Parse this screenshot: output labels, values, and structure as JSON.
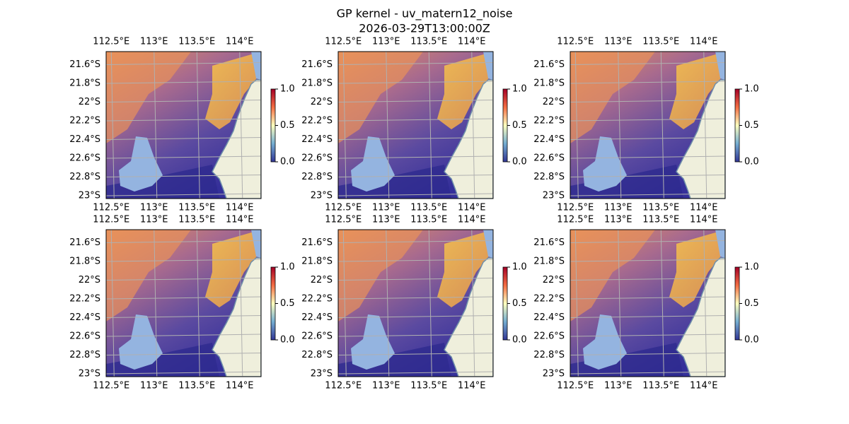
{
  "figure": {
    "title": "GP kernel - uv_matern12_noise",
    "subtitle": "2026-03-29T13:00:00Z"
  },
  "chart_data": [
    {
      "type": "map",
      "xlim": [
        112.44,
        114.25
      ],
      "ylim": [
        -23.03,
        -21.46
      ],
      "xticks": [
        {
          "value": 112.5,
          "label": "112.5°E"
        },
        {
          "value": 113,
          "label": "113°E"
        },
        {
          "value": 113.5,
          "label": "113.5°E"
        },
        {
          "value": 114,
          "label": "114°E"
        }
      ],
      "yticks": [
        {
          "value": -21.6,
          "label": "21.6°S"
        },
        {
          "value": -21.8,
          "label": "21.8°S"
        },
        {
          "value": -22,
          "label": "22°S"
        },
        {
          "value": -22.2,
          "label": "22.2°S"
        },
        {
          "value": -22.4,
          "label": "22.4°S"
        },
        {
          "value": -22.6,
          "label": "22.6°S"
        },
        {
          "value": -22.8,
          "label": "22.8°S"
        },
        {
          "value": -23,
          "label": "23°S"
        }
      ],
      "colorbar": {
        "lim": [
          0,
          1
        ],
        "ticks": [
          {
            "value": 0,
            "label": "0.0"
          },
          0.5,
          {
            "value": 1,
            "label": "1.0"
          }
        ],
        "colors": [
          "#313695",
          "#74add1",
          "#ffffbf",
          "#f46d43",
          "#a50026"
        ]
      }
    },
    {
      "type": "map",
      "xlim": [
        112.44,
        114.25
      ],
      "ylim": [
        -23.03,
        -21.46
      ],
      "xticks": [
        {
          "value": 112.5,
          "label": "112.5°E"
        },
        {
          "value": 113,
          "label": "113°E"
        },
        {
          "value": 113.5,
          "label": "113.5°E"
        },
        {
          "value": 114,
          "label": "114°E"
        }
      ],
      "yticks": [
        {
          "value": -21.6,
          "label": "21.6°S"
        },
        {
          "value": -21.8,
          "label": "21.8°S"
        },
        {
          "value": -22,
          "label": "22°S"
        },
        {
          "value": -22.2,
          "label": "22.2°S"
        },
        {
          "value": -22.4,
          "label": "22.4°S"
        },
        {
          "value": -22.6,
          "label": "22.6°S"
        },
        {
          "value": -22.8,
          "label": "22.8°S"
        },
        {
          "value": -23,
          "label": "23°S"
        }
      ],
      "colorbar": {
        "lim": [
          0,
          1
        ],
        "ticks": [
          {
            "value": 0,
            "label": "0.0"
          },
          0.5,
          {
            "value": 1,
            "label": "1.0"
          }
        ],
        "colors": [
          "#313695",
          "#74add1",
          "#ffffbf",
          "#f46d43",
          "#a50026"
        ]
      }
    },
    {
      "type": "map",
      "xlim": [
        112.44,
        114.25
      ],
      "ylim": [
        -23.03,
        -21.46
      ],
      "xticks": [
        {
          "value": 112.5,
          "label": "112.5°E"
        },
        {
          "value": 113,
          "label": "113°E"
        },
        {
          "value": 113.5,
          "label": "113.5°E"
        },
        {
          "value": 114,
          "label": "114°E"
        }
      ],
      "yticks": [
        {
          "value": -21.6,
          "label": "21.6°S"
        },
        {
          "value": -21.8,
          "label": "21.8°S"
        },
        {
          "value": -22,
          "label": "22°S"
        },
        {
          "value": -22.2,
          "label": "22.2°S"
        },
        {
          "value": -22.4,
          "label": "22.4°S"
        },
        {
          "value": -22.6,
          "label": "22.6°S"
        },
        {
          "value": -22.8,
          "label": "22.8°S"
        },
        {
          "value": -23,
          "label": "23°S"
        }
      ],
      "colorbar": {
        "lim": [
          0,
          1
        ],
        "ticks": [
          {
            "value": 0,
            "label": "0.0"
          },
          0.5,
          {
            "value": 1,
            "label": "1.0"
          }
        ],
        "colors": [
          "#313695",
          "#74add1",
          "#ffffbf",
          "#f46d43",
          "#a50026"
        ]
      }
    },
    {
      "type": "map",
      "xlim": [
        112.44,
        114.25
      ],
      "ylim": [
        -23.03,
        -21.46
      ],
      "xticks": [
        {
          "value": 112.5,
          "label": "112.5°E"
        },
        {
          "value": 113,
          "label": "113°E"
        },
        {
          "value": 113.5,
          "label": "113.5°E"
        },
        {
          "value": 114,
          "label": "114°E"
        }
      ],
      "yticks": [
        {
          "value": -21.6,
          "label": "21.6°S"
        },
        {
          "value": -21.8,
          "label": "21.8°S"
        },
        {
          "value": -22,
          "label": "22°S"
        },
        {
          "value": -22.2,
          "label": "22.2°S"
        },
        {
          "value": -22.4,
          "label": "22.4°S"
        },
        {
          "value": -22.6,
          "label": "22.6°S"
        },
        {
          "value": -22.8,
          "label": "22.8°S"
        },
        {
          "value": -23,
          "label": "23°S"
        }
      ],
      "colorbar": {
        "lim": [
          0,
          1
        ],
        "ticks": [
          {
            "value": 0,
            "label": "0.0"
          },
          0.5,
          {
            "value": 1,
            "label": "1.0"
          }
        ],
        "colors": [
          "#313695",
          "#74add1",
          "#ffffbf",
          "#f46d43",
          "#a50026"
        ]
      }
    },
    {
      "type": "map",
      "xlim": [
        112.44,
        114.25
      ],
      "ylim": [
        -23.03,
        -21.46
      ],
      "xticks": [
        {
          "value": 112.5,
          "label": "112.5°E"
        },
        {
          "value": 113,
          "label": "113°E"
        },
        {
          "value": 113.5,
          "label": "113.5°E"
        },
        {
          "value": 114,
          "label": "114°E"
        }
      ],
      "yticks": [
        {
          "value": -21.6,
          "label": "21.6°S"
        },
        {
          "value": -21.8,
          "label": "21.8°S"
        },
        {
          "value": -22,
          "label": "22°S"
        },
        {
          "value": -22.2,
          "label": "22.2°S"
        },
        {
          "value": -22.4,
          "label": "22.4°S"
        },
        {
          "value": -22.6,
          "label": "22.6°S"
        },
        {
          "value": -22.8,
          "label": "22.8°S"
        },
        {
          "value": -23,
          "label": "23°S"
        }
      ],
      "colorbar": {
        "lim": [
          0,
          1
        ],
        "ticks": [
          {
            "value": 0,
            "label": "0.0"
          },
          0.5,
          {
            "value": 1,
            "label": "1.0"
          }
        ],
        "colors": [
          "#313695",
          "#74add1",
          "#ffffbf",
          "#f46d43",
          "#a50026"
        ]
      }
    },
    {
      "type": "map",
      "xlim": [
        112.44,
        114.25
      ],
      "ylim": [
        -23.03,
        -21.46
      ],
      "xticks": [
        {
          "value": 112.5,
          "label": "112.5°E"
        },
        {
          "value": 113,
          "label": "113°E"
        },
        {
          "value": 113.5,
          "label": "113.5°E"
        },
        {
          "value": 114,
          "label": "114°E"
        }
      ],
      "yticks": [
        {
          "value": -21.6,
          "label": "21.6°S"
        },
        {
          "value": -21.8,
          "label": "21.8°S"
        },
        {
          "value": -22,
          "label": "22°S"
        },
        {
          "value": -22.2,
          "label": "22.2°S"
        },
        {
          "value": -22.4,
          "label": "22.4°S"
        },
        {
          "value": -22.6,
          "label": "22.6°S"
        },
        {
          "value": -22.8,
          "label": "22.8°S"
        },
        {
          "value": -23,
          "label": "23°S"
        }
      ],
      "colorbar": {
        "lim": [
          0,
          1
        ],
        "ticks": [
          {
            "value": 0,
            "label": "0.0"
          },
          0.5,
          {
            "value": 1,
            "label": "1.0"
          }
        ],
        "colors": [
          "#313695",
          "#74add1",
          "#ffffbf",
          "#f46d43",
          "#a50026"
        ]
      }
    }
  ]
}
